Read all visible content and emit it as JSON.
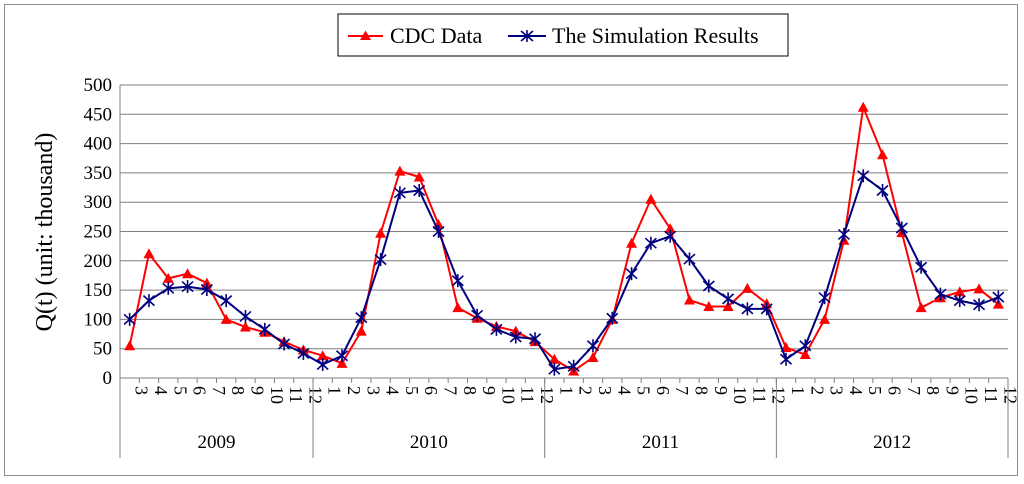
{
  "chart_data": {
    "type": "line",
    "ylabel": "Q(t) (unit: thousand)",
    "xlabel": "",
    "ylim": [
      0,
      500
    ],
    "yticks": [
      0,
      50,
      100,
      150,
      200,
      250,
      300,
      350,
      400,
      450,
      500
    ],
    "grid": "horizontal",
    "legend_position": "top-center",
    "categories": [
      "3",
      "4",
      "5",
      "6",
      "7",
      "8",
      "9",
      "10",
      "11",
      "12",
      "1",
      "2",
      "3",
      "4",
      "5",
      "6",
      "7",
      "8",
      "9",
      "10",
      "11",
      "12",
      "1",
      "2",
      "3",
      "4",
      "5",
      "6",
      "7",
      "8",
      "9",
      "10",
      "11",
      "12",
      "1",
      "2",
      "3",
      "4",
      "5",
      "6",
      "7",
      "8",
      "9",
      "10",
      "11",
      "12"
    ],
    "groups": [
      {
        "label": "2009",
        "count": 10
      },
      {
        "label": "2010",
        "count": 12
      },
      {
        "label": "2011",
        "count": 12
      },
      {
        "label": "2012",
        "count": 12
      }
    ],
    "series": [
      {
        "name": "CDC Data",
        "color": "#ff0000",
        "marker": "triangle",
        "values": [
          55,
          212,
          170,
          178,
          162,
          100,
          87,
          78,
          62,
          48,
          38,
          25,
          80,
          247,
          353,
          343,
          262,
          120,
          102,
          88,
          80,
          62,
          32,
          12,
          35,
          100,
          230,
          305,
          255,
          133,
          122,
          122,
          153,
          127,
          52,
          40,
          100,
          235,
          462,
          381,
          248,
          120,
          137,
          147,
          152,
          126
        ]
      },
      {
        "name": "The Simulation Results",
        "color": "#00007f",
        "marker": "asterisk",
        "values": [
          100,
          132,
          153,
          156,
          151,
          132,
          105,
          83,
          58,
          42,
          23,
          38,
          103,
          202,
          316,
          320,
          250,
          166,
          107,
          83,
          70,
          67,
          15,
          20,
          55,
          102,
          178,
          230,
          242,
          203,
          157,
          135,
          118,
          118,
          32,
          55,
          137,
          245,
          345,
          320,
          256,
          189,
          143,
          132,
          125,
          138
        ]
      }
    ]
  }
}
